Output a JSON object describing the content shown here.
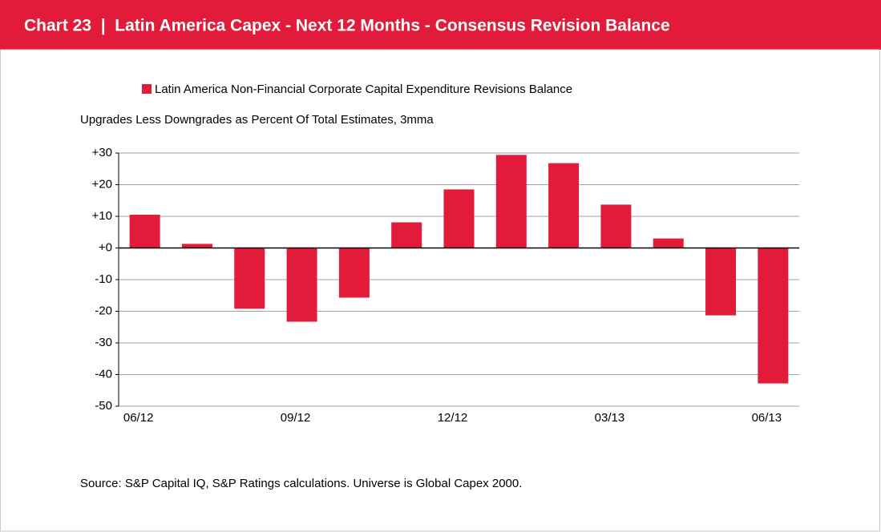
{
  "chart_data": {
    "type": "bar",
    "title": "Chart 23  |  Latin America Capex - Next 12 Months - Consensus Revision Balance",
    "subtitle": "Upgrades Less Downgrades as Percent Of Total Estimates, 3mma",
    "source": "Source: S&P Capital IQ, S&P Ratings calculations. Universe is Global Capex 2000.",
    "categories": [
      "06/12",
      null,
      null,
      "09/12",
      null,
      null,
      "12/12",
      null,
      null,
      "03/13",
      null,
      null,
      "06/13"
    ],
    "series": [
      {
        "name": "Latin America Non-Financial Corporate Capital Expenditure Revisions Balance",
        "color": "#e31b3b",
        "values": [
          10.5,
          1.3,
          -19.2,
          -23.3,
          -15.7,
          8.1,
          18.5,
          29.4,
          26.8,
          13.7,
          3,
          -21.3,
          -42.8
        ]
      }
    ],
    "ylim": [
      -50,
      30
    ],
    "yticks": [
      {
        "value": 30,
        "label": "+30"
      },
      {
        "value": 20,
        "label": "+20"
      },
      {
        "value": 10,
        "label": "+10"
      },
      {
        "value": 0,
        "label": "+0"
      },
      -10,
      -20,
      -30,
      -40,
      -50
    ],
    "grid": true
  }
}
